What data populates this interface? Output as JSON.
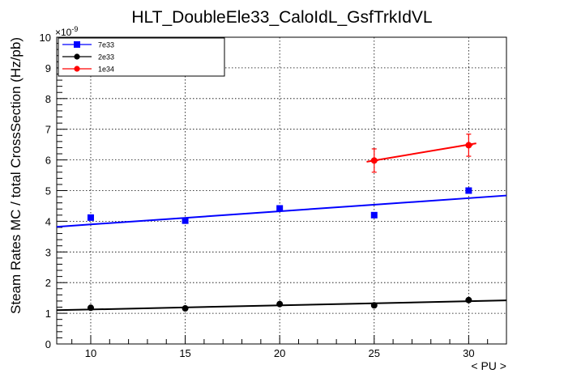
{
  "chart_data": {
    "type": "scatter",
    "title": "HLT_DoubleEle33_CaloIdL_GsfTrkIdVL",
    "xlabel": "< PU >",
    "ylabel": "Steam Rates MC / total CrossSection (Hz/pb)",
    "y_exponent_label": "×10",
    "y_exponent_power": "-9",
    "xlim": [
      8.2,
      32.0
    ],
    "ylim": [
      0,
      10
    ],
    "x_major_ticks": [
      10,
      15,
      20,
      25,
      30
    ],
    "y_major_ticks": [
      0,
      1,
      2,
      3,
      4,
      5,
      6,
      7,
      8,
      9,
      10
    ],
    "grid": true,
    "legend_position": "top-left",
    "series": [
      {
        "name": "7e33",
        "color": "#0000ff",
        "marker": "square",
        "x": [
          10,
          15,
          20,
          25,
          30
        ],
        "y": [
          4.12,
          4.02,
          4.42,
          4.2,
          5.0
        ],
        "fit": {
          "x": [
            8.2,
            32.0
          ],
          "y": [
            3.82,
            4.84
          ]
        }
      },
      {
        "name": "2e33",
        "color": "#000000",
        "marker": "circle",
        "x": [
          10,
          15,
          20,
          25,
          30
        ],
        "y": [
          1.18,
          1.16,
          1.3,
          1.26,
          1.43
        ],
        "fit": {
          "x": [
            8.2,
            32.0
          ],
          "y": [
            1.1,
            1.42
          ]
        }
      },
      {
        "name": "1e34",
        "color": "#ff0000",
        "marker": "circle",
        "x": [
          25,
          30
        ],
        "y": [
          5.98,
          6.48
        ],
        "yerr": [
          0.38,
          0.36
        ],
        "fit": {
          "x": [
            24.6,
            30.4
          ],
          "y": [
            5.94,
            6.54
          ]
        }
      }
    ]
  }
}
